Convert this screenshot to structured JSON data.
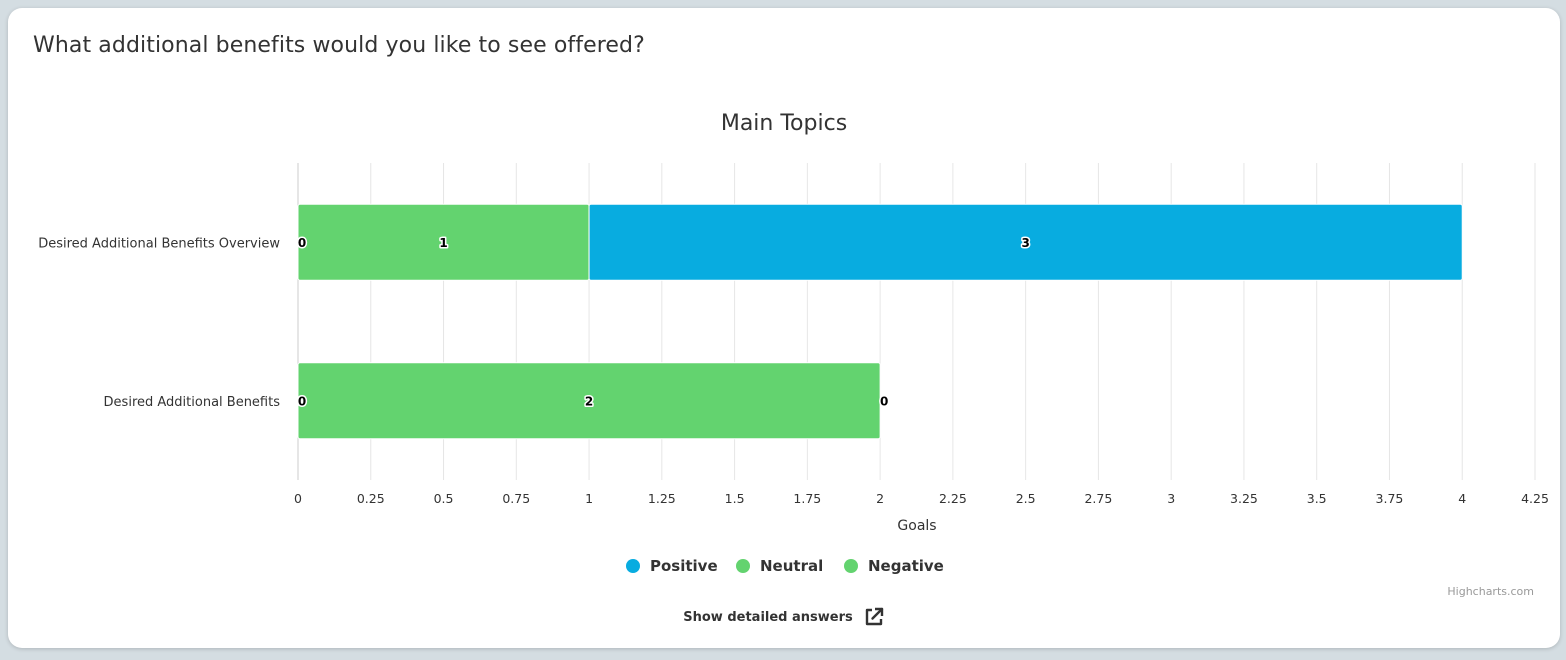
{
  "question": "What additional benefits would you like to see offered?",
  "chart_data": {
    "type": "bar",
    "orientation": "horizontal",
    "stacking": "normal",
    "title": "Main Topics",
    "xlabel": "Goals",
    "categories": [
      "Desired Additional Benefits Overview",
      "Desired Additional Benefits"
    ],
    "xlim": [
      0,
      4.25
    ],
    "ticks": [
      "0",
      "0.25",
      "0.5",
      "0.75",
      "1",
      "1.25",
      "1.5",
      "1.75",
      "2",
      "2.25",
      "2.5",
      "2.75",
      "3",
      "3.25",
      "3.5",
      "3.75",
      "4",
      "4.25"
    ],
    "grid": true,
    "legend_position": "bottom-center",
    "series": [
      {
        "name": "Positive",
        "color": "#08ace0",
        "values": [
          3,
          0
        ]
      },
      {
        "name": "Neutral",
        "color": "#63d36f",
        "values": [
          1,
          2
        ]
      },
      {
        "name": "Negative",
        "color": "#63d36f",
        "values": [
          0,
          0
        ]
      }
    ],
    "stack_order": [
      "Negative",
      "Neutral",
      "Positive"
    ]
  },
  "credits": "Highcharts.com",
  "detail_link": {
    "label": "Show detailed answers",
    "icon": "external-link-icon"
  }
}
